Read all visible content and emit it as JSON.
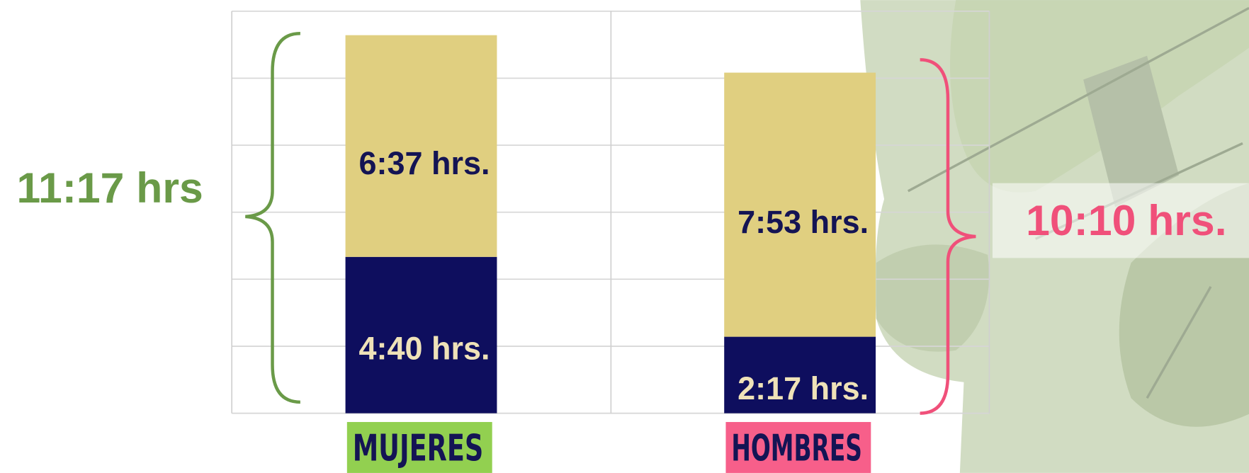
{
  "chart_data": {
    "type": "stacked-bar",
    "categories": [
      "MUJERES",
      "HOMBRES"
    ],
    "category_colors": [
      "#92d050",
      "#f75f8a"
    ],
    "series": [
      {
        "color": "#0e0e5e",
        "label_color": "#efe2b8",
        "values": [
          4.667,
          2.283
        ],
        "value_labels": [
          "4:40 hrs.",
          "2:17 hrs."
        ]
      },
      {
        "color": "#e0cf80",
        "label_color": "#141454",
        "values": [
          6.617,
          7.883
        ],
        "value_labels": [
          "6:37 hrs.",
          "7:53 hrs."
        ]
      }
    ],
    "annotations": [
      {
        "text": "11:17 hrs",
        "color": "#6a9a48"
      },
      {
        "text": "10:10 hrs.",
        "color": "#f0507a"
      }
    ],
    "ylim": [
      0,
      12
    ],
    "yticks": [
      0,
      2,
      4,
      6,
      8,
      10,
      12
    ],
    "grid": true
  }
}
